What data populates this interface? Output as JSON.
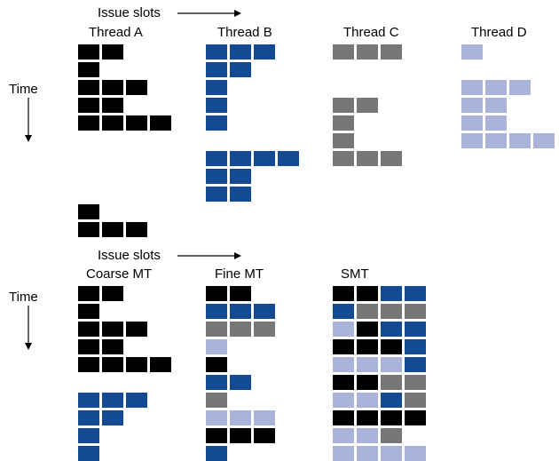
{
  "colors": {
    "A": "#000000",
    "B": "#134a92",
    "C": "#77777a",
    "D": "#aab3da"
  },
  "top": {
    "issue_slots_label": "Issue slots",
    "time_label": "Time",
    "threads": [
      {
        "name": "Thread A",
        "rows": [
          [
            "A",
            "A",
            null,
            null
          ],
          [
            "A",
            null,
            null,
            null
          ],
          [
            "A",
            "A",
            "A",
            null
          ],
          [
            "A",
            "A",
            null,
            null
          ],
          [
            "A",
            "A",
            "A",
            "A"
          ],
          [
            null,
            null,
            null,
            null
          ],
          [
            null,
            null,
            null,
            null
          ],
          [
            null,
            null,
            null,
            null
          ],
          [
            null,
            null,
            null,
            null
          ],
          [
            "A",
            null,
            null,
            null
          ],
          [
            "A",
            "A",
            "A",
            null
          ]
        ]
      },
      {
        "name": "Thread B",
        "rows": [
          [
            "B",
            "B",
            "B",
            null
          ],
          [
            "B",
            "B",
            null,
            null
          ],
          [
            "B",
            null,
            null,
            null
          ],
          [
            "B",
            null,
            null,
            null
          ],
          [
            "B",
            null,
            null,
            null
          ],
          [
            null,
            null,
            null,
            null
          ],
          [
            "B",
            "B",
            "B",
            "B"
          ],
          [
            "B",
            "B",
            null,
            null
          ],
          [
            "B",
            "B",
            null,
            null
          ]
        ]
      },
      {
        "name": "Thread C",
        "rows": [
          [
            "C",
            "C",
            "C",
            null
          ],
          [
            null,
            null,
            null,
            null
          ],
          [
            null,
            null,
            null,
            null
          ],
          [
            "C",
            "C",
            null,
            null
          ],
          [
            "C",
            null,
            null,
            null
          ],
          [
            "C",
            null,
            null,
            null
          ],
          [
            "C",
            "C",
            "C",
            null
          ]
        ]
      },
      {
        "name": "Thread D",
        "rows": [
          [
            "D",
            null,
            null,
            null
          ],
          [
            null,
            null,
            null,
            null
          ],
          [
            "D",
            "D",
            "D",
            null
          ],
          [
            "D",
            "D",
            null,
            null
          ],
          [
            "D",
            "D",
            null,
            null
          ],
          [
            "D",
            "D",
            "D",
            "D"
          ]
        ]
      }
    ]
  },
  "bottom": {
    "issue_slots_label": "Issue slots",
    "time_label": "Time",
    "schemes": [
      {
        "name": "Coarse MT",
        "rows": [
          [
            "A",
            "A",
            null,
            null
          ],
          [
            "A",
            null,
            null,
            null
          ],
          [
            "A",
            "A",
            "A",
            null
          ],
          [
            "A",
            "A",
            null,
            null
          ],
          [
            "A",
            "A",
            "A",
            "A"
          ],
          [
            null,
            null,
            null,
            null
          ],
          [
            "B",
            "B",
            "B",
            null
          ],
          [
            "B",
            "B",
            null,
            null
          ],
          [
            "B",
            null,
            null,
            null
          ],
          [
            "B",
            null,
            null,
            null
          ]
        ]
      },
      {
        "name": "Fine MT",
        "rows": [
          [
            "A",
            "A",
            null,
            null
          ],
          [
            "B",
            "B",
            "B",
            null
          ],
          [
            "C",
            "C",
            "C",
            null
          ],
          [
            "D",
            null,
            null,
            null
          ],
          [
            "A",
            null,
            null,
            null
          ],
          [
            "B",
            "B",
            null,
            null
          ],
          [
            "C",
            null,
            null,
            null
          ],
          [
            "D",
            "D",
            "D",
            null
          ],
          [
            "A",
            "A",
            "A",
            null
          ],
          [
            "B",
            null,
            null,
            null
          ]
        ]
      },
      {
        "name": "SMT",
        "rows": [
          [
            "A",
            "A",
            "B",
            "B"
          ],
          [
            "B",
            "C",
            "C",
            "C"
          ],
          [
            "D",
            "A",
            "B",
            "B"
          ],
          [
            "A",
            "A",
            "A",
            "B"
          ],
          [
            "D",
            "D",
            "D",
            "B"
          ],
          [
            "A",
            "A",
            "C",
            "C"
          ],
          [
            "D",
            "D",
            "B",
            "C"
          ],
          [
            "A",
            "A",
            "A",
            "A"
          ],
          [
            "D",
            "D",
            "C",
            null
          ],
          [
            "D",
            "D",
            "D",
            "D"
          ]
        ]
      }
    ]
  }
}
